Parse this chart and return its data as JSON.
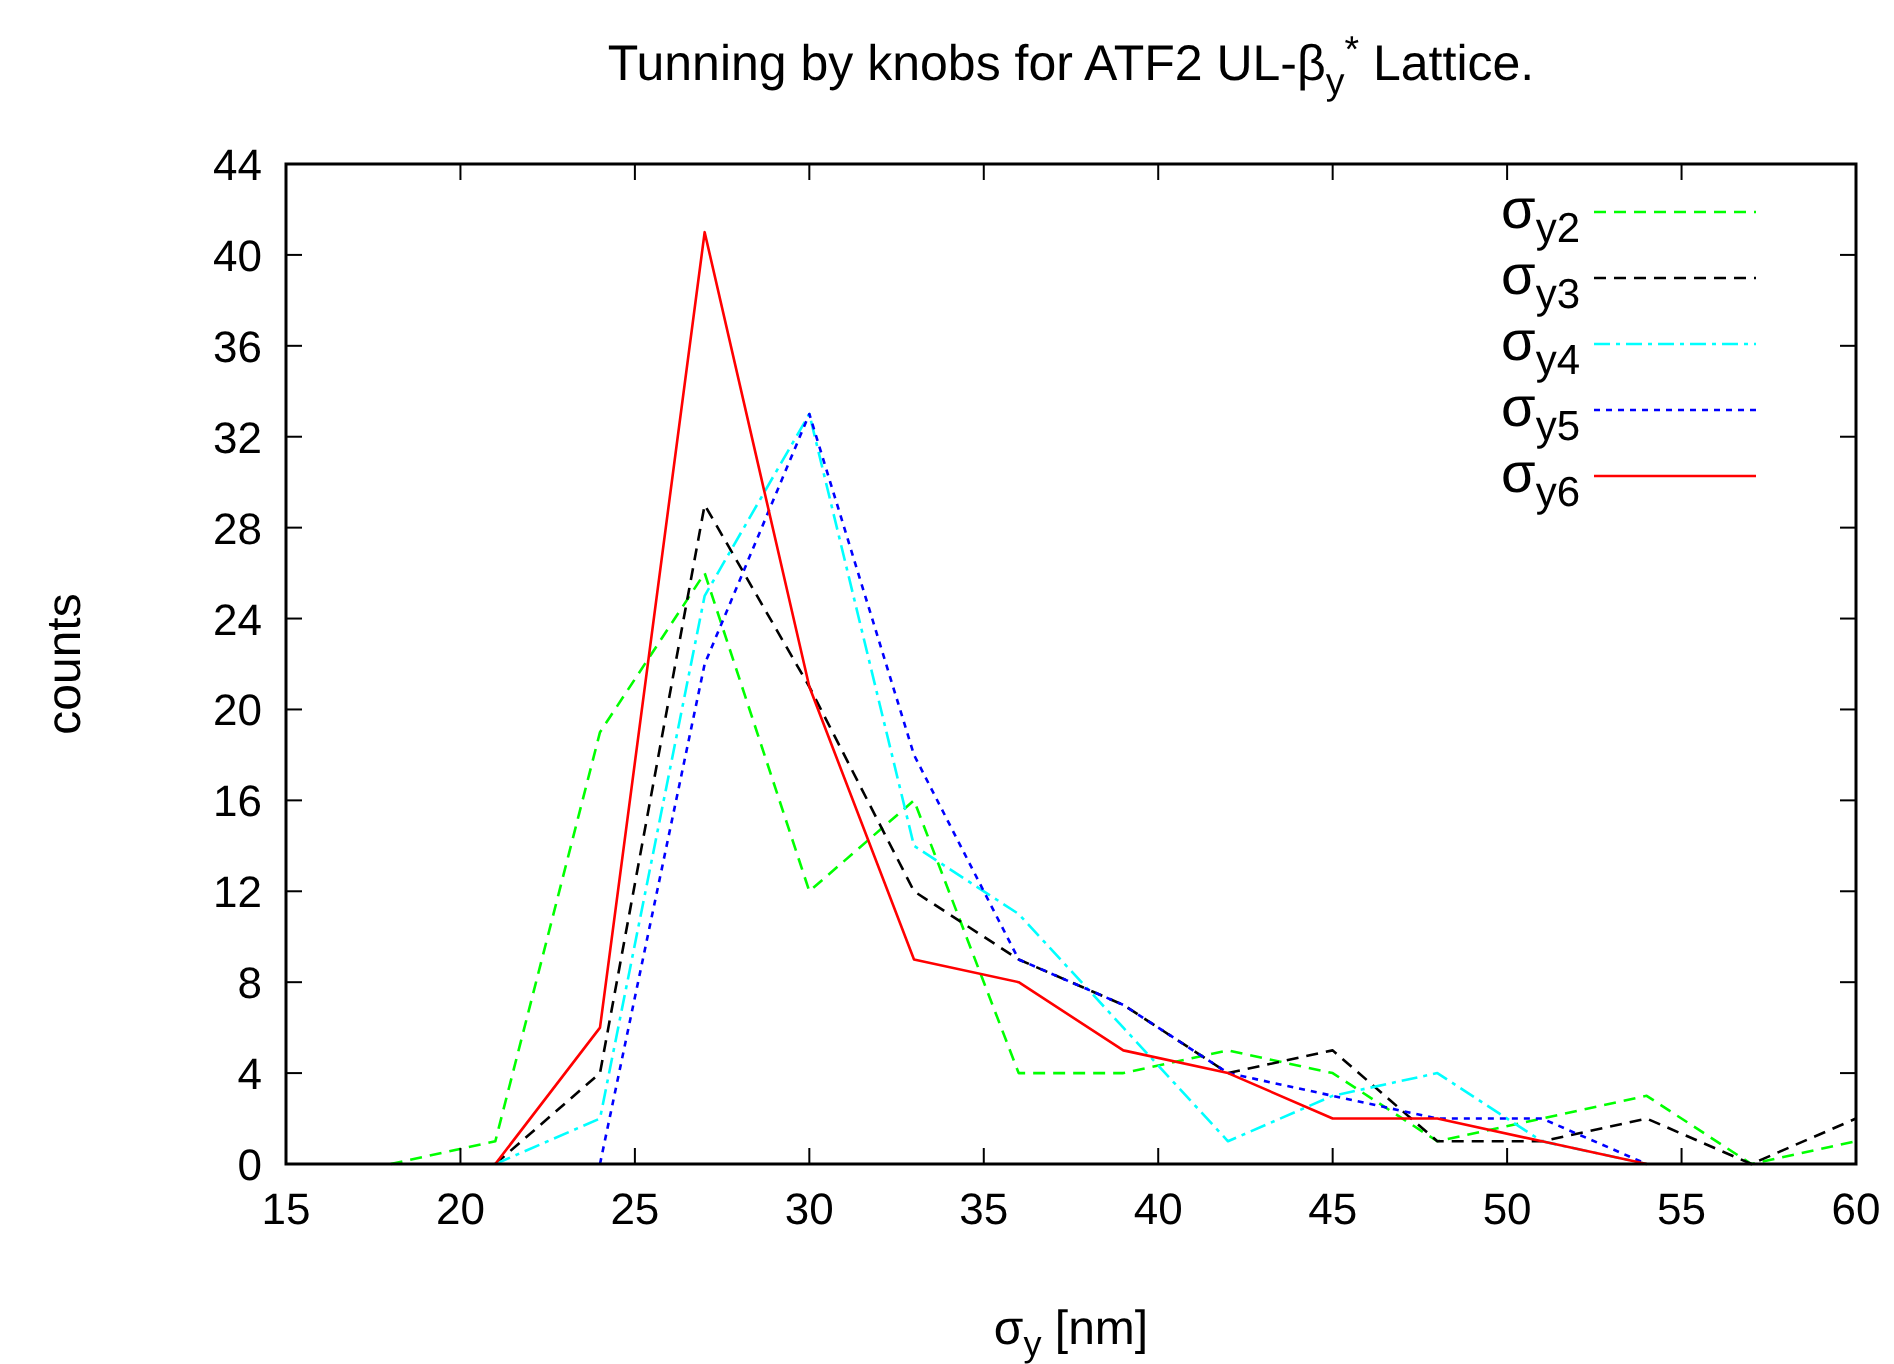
{
  "chart_data": {
    "type": "line",
    "title": "Tunning by knobs for ATF2 UL-β$_{y}$$^{*}$ Lattice.",
    "xlabel": "σ$_{y}$ [nm]",
    "ylabel": "counts",
    "xlim": [
      15,
      60
    ],
    "xticks": [
      15,
      20,
      25,
      30,
      35,
      40,
      45,
      50,
      55,
      60
    ],
    "ylim": [
      0,
      44
    ],
    "yticks": [
      0,
      4,
      8,
      12,
      16,
      20,
      24,
      28,
      32,
      36,
      40,
      44
    ],
    "grid": false,
    "legend": "top right",
    "series": [
      {
        "name": "σ$_{y2}$",
        "color": "#00ff00",
        "line_style": "dashed",
        "x": [
          18,
          21,
          24,
          27,
          30,
          33,
          36,
          39,
          42,
          45,
          48,
          51,
          54,
          57,
          60
        ],
        "values": [
          0,
          1,
          19,
          26,
          12,
          16,
          4,
          4,
          5,
          4,
          1,
          2,
          3,
          0,
          1
        ]
      },
      {
        "name": "σ$_{y3}$",
        "color": "#000000",
        "line_style": "dashed",
        "x": [
          21,
          24,
          27,
          30,
          33,
          36,
          39,
          42,
          45,
          48,
          51,
          54,
          57,
          60
        ],
        "values": [
          0,
          4,
          29,
          21,
          12,
          9,
          7,
          4,
          5,
          1,
          1,
          2,
          0,
          2
        ]
      },
      {
        "name": "σ$_{y4}$",
        "color": "#00ffff",
        "line_style": "dashdot",
        "x": [
          21,
          24,
          27,
          30,
          33,
          36,
          39,
          42,
          45,
          48,
          51,
          54
        ],
        "values": [
          0,
          2,
          25,
          33,
          14,
          11,
          6,
          1,
          3,
          4,
          1,
          0
        ]
      },
      {
        "name": "σ$_{y5}$",
        "color": "#0000ff",
        "line_style": "dotted",
        "x": [
          24,
          27,
          30,
          33,
          36,
          39,
          42,
          45,
          48,
          51,
          54
        ],
        "values": [
          0,
          22,
          33,
          18,
          9,
          7,
          4,
          3,
          2,
          2,
          0
        ]
      },
      {
        "name": "σ$_{y6}$",
        "color": "#ff0000",
        "line_style": "solid",
        "x": [
          21,
          24,
          27,
          30,
          33,
          36,
          39,
          42,
          45,
          48,
          51,
          54
        ],
        "values": [
          0,
          6,
          41,
          21,
          9,
          8,
          5,
          4,
          2,
          2,
          1,
          0
        ]
      }
    ]
  }
}
